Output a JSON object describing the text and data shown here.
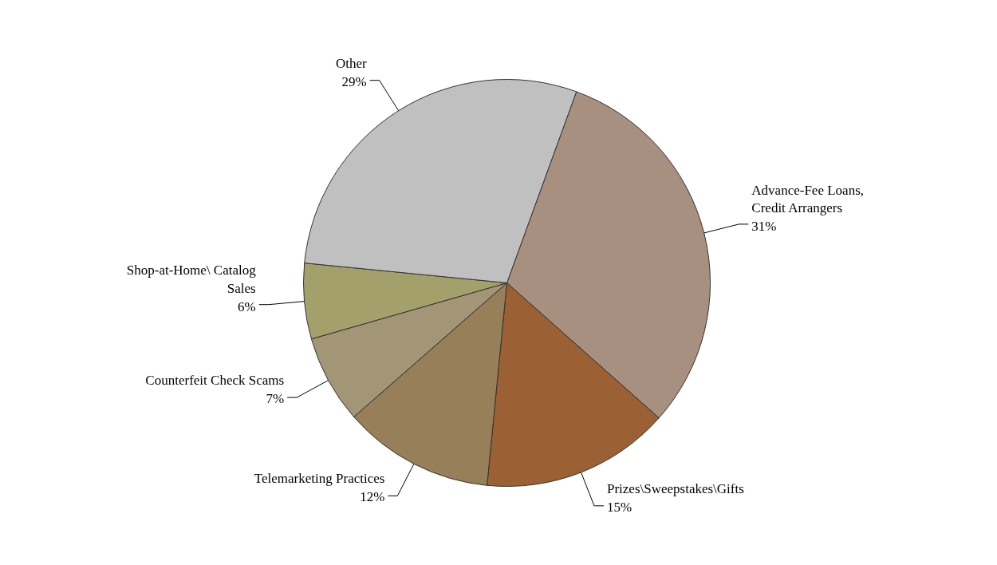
{
  "chart_data": {
    "type": "pie",
    "categories": [
      "Advance-Fee Loans, Credit Arrangers",
      "Prizes\\Sweepstakes\\Gifts",
      "Telemarketing Practices",
      "Counterfeit Check Scams",
      "Shop-at-Home\\ Catalog Sales",
      "Other"
    ],
    "values": [
      31,
      15,
      12,
      7,
      6,
      29
    ],
    "value_labels": [
      "31%",
      "15%",
      "12%",
      "7%",
      "6%",
      "29%"
    ],
    "colors": [
      "#a89080",
      "#9b6135",
      "#977f5a",
      "#a29677",
      "#a4a06c",
      "#c0c0c0"
    ]
  }
}
